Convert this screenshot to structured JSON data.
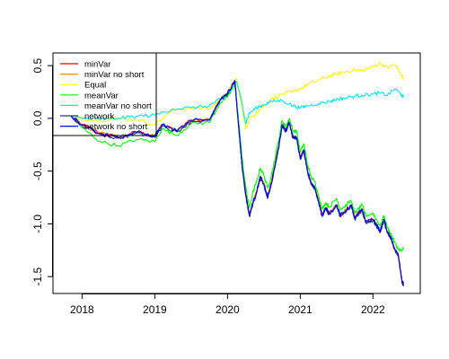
{
  "chart_data": {
    "type": "line",
    "title": "",
    "xlabel": "",
    "ylabel": "",
    "xlim": [
      2017.6,
      2022.65
    ],
    "ylim": [
      -1.66,
      0.62
    ],
    "x_ticks": [
      {
        "value": 2018,
        "label": "2018"
      },
      {
        "value": 2019,
        "label": "2019"
      },
      {
        "value": 2020,
        "label": "2020"
      },
      {
        "value": 2021,
        "label": "2021"
      },
      {
        "value": 2022,
        "label": "2022"
      }
    ],
    "y_ticks": [
      {
        "value": 0.5,
        "label": "0.5"
      },
      {
        "value": 0.0,
        "label": "0.0"
      },
      {
        "value": -0.5,
        "label": "-0.5"
      },
      {
        "value": -1.0,
        "label": "-1.0"
      },
      {
        "value": -1.5,
        "label": "-1.5"
      }
    ],
    "grid": false,
    "legend_position": "top-left",
    "series": [
      {
        "name": "minVar",
        "color": "#ff0000",
        "x": [
          2017.85,
          2018.0,
          2018.25,
          2018.5,
          2018.75,
          2019.0,
          2019.1,
          2019.3,
          2019.5,
          2019.75,
          2019.9,
          2020.0,
          2020.1,
          2020.15,
          2020.2,
          2020.25,
          2020.3,
          2020.35,
          2020.4,
          2020.45,
          2020.5,
          2020.55,
          2020.6,
          2020.7,
          2020.75,
          2020.8,
          2020.85,
          2020.9,
          2020.95,
          2021.0,
          2021.05,
          2021.1,
          2021.15,
          2021.2,
          2021.25,
          2021.3,
          2021.35,
          2021.4,
          2021.5,
          2021.55,
          2021.6,
          2021.7,
          2021.75,
          2021.8,
          2021.85,
          2021.9,
          2022.0,
          2022.05,
          2022.1,
          2022.15,
          2022.2,
          2022.25,
          2022.3,
          2022.35,
          2022.4,
          2022.42
        ],
        "values": [
          0.02,
          -0.06,
          -0.14,
          -0.18,
          -0.13,
          -0.17,
          -0.06,
          -0.12,
          -0.02,
          -0.01,
          0.18,
          0.24,
          0.36,
          -0.05,
          -0.45,
          -0.72,
          -0.92,
          -0.8,
          -0.7,
          -0.55,
          -0.62,
          -0.75,
          -0.62,
          -0.28,
          -0.06,
          -0.12,
          -0.04,
          -0.18,
          -0.18,
          -0.38,
          -0.3,
          -0.5,
          -0.62,
          -0.66,
          -0.78,
          -0.92,
          -0.85,
          -0.9,
          -0.82,
          -0.92,
          -0.89,
          -0.82,
          -0.95,
          -0.9,
          -0.86,
          -0.98,
          -0.96,
          -1.01,
          -1.07,
          -0.96,
          -1.08,
          -1.14,
          -1.24,
          -1.3,
          -1.55,
          -1.58
        ]
      },
      {
        "name": "minVar no short",
        "color": "#ff8c00",
        "x": [
          2017.85,
          2018.0,
          2018.25,
          2018.5,
          2018.75,
          2019.0,
          2019.1,
          2019.3,
          2019.5,
          2019.75,
          2019.9,
          2020.0,
          2020.1,
          2020.15,
          2020.2,
          2020.25,
          2020.3,
          2020.35,
          2020.4,
          2020.45,
          2020.5,
          2020.55,
          2020.6,
          2020.7,
          2020.75,
          2020.8,
          2020.85,
          2020.9,
          2020.95,
          2021.0,
          2021.05,
          2021.1,
          2021.15,
          2021.2,
          2021.25,
          2021.3,
          2021.35,
          2021.4,
          2021.5,
          2021.55,
          2021.6,
          2021.7,
          2021.75,
          2021.8,
          2021.85,
          2021.9,
          2022.0,
          2022.05,
          2022.1,
          2022.15,
          2022.2,
          2022.25,
          2022.3,
          2022.35,
          2022.4,
          2022.42
        ],
        "values": [
          0.02,
          -0.06,
          -0.14,
          -0.18,
          -0.13,
          -0.17,
          -0.06,
          -0.12,
          -0.02,
          -0.01,
          0.18,
          0.24,
          0.36,
          -0.05,
          -0.44,
          -0.71,
          -0.91,
          -0.8,
          -0.69,
          -0.55,
          -0.62,
          -0.74,
          -0.61,
          -0.27,
          -0.06,
          -0.12,
          -0.04,
          -0.18,
          -0.18,
          -0.38,
          -0.3,
          -0.5,
          -0.62,
          -0.66,
          -0.78,
          -0.91,
          -0.85,
          -0.9,
          -0.82,
          -0.92,
          -0.89,
          -0.82,
          -0.95,
          -0.9,
          -0.86,
          -0.98,
          -0.96,
          -1.01,
          -1.07,
          -0.96,
          -1.08,
          -1.14,
          -1.24,
          -1.3,
          -1.55,
          -1.57
        ]
      },
      {
        "name": "Equal",
        "color": "#ffff00",
        "x": [
          2017.85,
          2018.0,
          2018.25,
          2018.5,
          2018.75,
          2019.0,
          2019.25,
          2019.5,
          2019.75,
          2019.9,
          2020.0,
          2020.12,
          2020.2,
          2020.25,
          2020.3,
          2020.4,
          2020.5,
          2020.6,
          2020.75,
          2020.9,
          2021.0,
          2021.1,
          2021.25,
          2021.4,
          2021.5,
          2021.6,
          2021.75,
          2021.85,
          2022.0,
          2022.1,
          2022.2,
          2022.3,
          2022.4,
          2022.42
        ],
        "values": [
          0.02,
          0.0,
          -0.02,
          0.0,
          -0.01,
          -0.06,
          0.08,
          0.1,
          0.09,
          0.18,
          0.22,
          0.38,
          0.1,
          -0.1,
          -0.02,
          0.06,
          0.12,
          0.18,
          0.23,
          0.25,
          0.28,
          0.32,
          0.36,
          0.4,
          0.42,
          0.44,
          0.46,
          0.45,
          0.49,
          0.52,
          0.48,
          0.51,
          0.4,
          0.37
        ]
      },
      {
        "name": "meanVar",
        "color": "#00ff00",
        "x": [
          2017.85,
          2018.0,
          2018.25,
          2018.5,
          2018.75,
          2019.0,
          2019.1,
          2019.3,
          2019.5,
          2019.75,
          2019.9,
          2020.0,
          2020.1,
          2020.15,
          2020.2,
          2020.25,
          2020.3,
          2020.35,
          2020.4,
          2020.45,
          2020.5,
          2020.55,
          2020.6,
          2020.7,
          2020.75,
          2020.8,
          2020.85,
          2020.9,
          2020.95,
          2021.0,
          2021.05,
          2021.1,
          2021.15,
          2021.2,
          2021.25,
          2021.3,
          2021.35,
          2021.4,
          2021.5,
          2021.55,
          2021.6,
          2021.7,
          2021.75,
          2021.8,
          2021.85,
          2021.9,
          2022.0,
          2022.05,
          2022.1,
          2022.15,
          2022.2,
          2022.25,
          2022.3,
          2022.35,
          2022.4,
          2022.42
        ],
        "values": [
          0.02,
          -0.09,
          -0.22,
          -0.26,
          -0.2,
          -0.22,
          -0.1,
          -0.16,
          -0.05,
          -0.04,
          0.15,
          0.2,
          0.32,
          0.0,
          -0.38,
          -0.65,
          -0.85,
          -0.7,
          -0.6,
          -0.47,
          -0.54,
          -0.66,
          -0.55,
          -0.22,
          -0.02,
          -0.08,
          0.0,
          -0.12,
          -0.12,
          -0.32,
          -0.24,
          -0.44,
          -0.56,
          -0.6,
          -0.72,
          -0.86,
          -0.8,
          -0.84,
          -0.76,
          -0.86,
          -0.84,
          -0.78,
          -0.9,
          -0.86,
          -0.82,
          -0.92,
          -0.9,
          -0.96,
          -1.02,
          -0.92,
          -1.04,
          -1.1,
          -1.18,
          -1.24,
          -1.26,
          -1.22
        ]
      },
      {
        "name": "meanVar no short",
        "color": "#00e5ee",
        "x": [
          2017.85,
          2018.0,
          2018.25,
          2018.5,
          2018.75,
          2019.0,
          2019.25,
          2019.5,
          2019.75,
          2019.9,
          2020.0,
          2020.12,
          2020.2,
          2020.25,
          2020.3,
          2020.4,
          2020.5,
          2020.6,
          2020.75,
          2020.9,
          2021.0,
          2021.1,
          2021.25,
          2021.4,
          2021.5,
          2021.6,
          2021.75,
          2021.85,
          2022.0,
          2022.1,
          2022.2,
          2022.3,
          2022.4,
          2022.42
        ],
        "values": [
          0.02,
          0.0,
          -0.01,
          0.0,
          0.02,
          0.03,
          0.09,
          0.1,
          0.12,
          0.18,
          0.22,
          0.35,
          0.15,
          -0.05,
          0.05,
          0.1,
          0.13,
          0.16,
          0.17,
          0.12,
          0.1,
          0.12,
          0.14,
          0.16,
          0.18,
          0.19,
          0.21,
          0.22,
          0.23,
          0.24,
          0.22,
          0.28,
          0.22,
          0.2
        ]
      },
      {
        "name": "network",
        "color": "#1f3a8a",
        "x": [
          2017.85,
          2018.0,
          2018.25,
          2018.5,
          2018.75,
          2019.0,
          2019.1,
          2019.3,
          2019.5,
          2019.75,
          2019.9,
          2020.0,
          2020.1,
          2020.15,
          2020.2,
          2020.25,
          2020.3,
          2020.35,
          2020.4,
          2020.45,
          2020.5,
          2020.55,
          2020.6,
          2020.7,
          2020.75,
          2020.8,
          2020.85,
          2020.9,
          2020.95,
          2021.0,
          2021.05,
          2021.1,
          2021.15,
          2021.2,
          2021.25,
          2021.3,
          2021.35,
          2021.4,
          2021.5,
          2021.55,
          2021.6,
          2021.7,
          2021.75,
          2021.8,
          2021.85,
          2021.9,
          2022.0,
          2022.05,
          2022.1,
          2022.15,
          2022.2,
          2022.25,
          2022.3,
          2022.35,
          2022.4,
          2022.42
        ],
        "values": [
          0.02,
          -0.07,
          -0.15,
          -0.19,
          -0.14,
          -0.18,
          -0.07,
          -0.13,
          -0.03,
          -0.02,
          0.17,
          0.23,
          0.35,
          -0.06,
          -0.46,
          -0.73,
          -0.93,
          -0.81,
          -0.71,
          -0.56,
          -0.63,
          -0.76,
          -0.63,
          -0.29,
          -0.07,
          -0.13,
          -0.05,
          -0.19,
          -0.19,
          -0.39,
          -0.31,
          -0.51,
          -0.63,
          -0.67,
          -0.79,
          -0.93,
          -0.86,
          -0.91,
          -0.83,
          -0.93,
          -0.9,
          -0.83,
          -0.96,
          -0.91,
          -0.87,
          -0.99,
          -0.97,
          -1.02,
          -1.08,
          -0.97,
          -1.09,
          -1.15,
          -1.25,
          -1.31,
          -1.56,
          -1.58
        ]
      },
      {
        "name": "network no short",
        "color": "#0000ee",
        "x": [
          2017.85,
          2018.0,
          2018.25,
          2018.5,
          2018.75,
          2019.0,
          2019.1,
          2019.3,
          2019.5,
          2019.75,
          2019.9,
          2020.0,
          2020.1,
          2020.15,
          2020.2,
          2020.25,
          2020.3,
          2020.35,
          2020.4,
          2020.45,
          2020.5,
          2020.55,
          2020.6,
          2020.7,
          2020.75,
          2020.8,
          2020.85,
          2020.9,
          2020.95,
          2021.0,
          2021.05,
          2021.1,
          2021.15,
          2021.2,
          2021.25,
          2021.3,
          2021.35,
          2021.4,
          2021.5,
          2021.55,
          2021.6,
          2021.7,
          2021.75,
          2021.8,
          2021.85,
          2021.9,
          2022.0,
          2022.05,
          2022.1,
          2022.15,
          2022.2,
          2022.25,
          2022.3,
          2022.35,
          2022.4,
          2022.42
        ],
        "values": [
          0.02,
          -0.06,
          -0.14,
          -0.18,
          -0.13,
          -0.17,
          -0.06,
          -0.12,
          -0.02,
          -0.01,
          0.18,
          0.24,
          0.36,
          -0.05,
          -0.45,
          -0.72,
          -0.92,
          -0.8,
          -0.7,
          -0.55,
          -0.62,
          -0.75,
          -0.62,
          -0.28,
          -0.06,
          -0.12,
          -0.04,
          -0.18,
          -0.18,
          -0.38,
          -0.3,
          -0.5,
          -0.62,
          -0.66,
          -0.78,
          -0.92,
          -0.85,
          -0.9,
          -0.82,
          -0.92,
          -0.89,
          -0.82,
          -0.95,
          -0.9,
          -0.86,
          -0.98,
          -0.96,
          -1.01,
          -1.07,
          -0.96,
          -1.08,
          -1.14,
          -1.24,
          -1.3,
          -1.55,
          -1.57
        ]
      }
    ]
  }
}
